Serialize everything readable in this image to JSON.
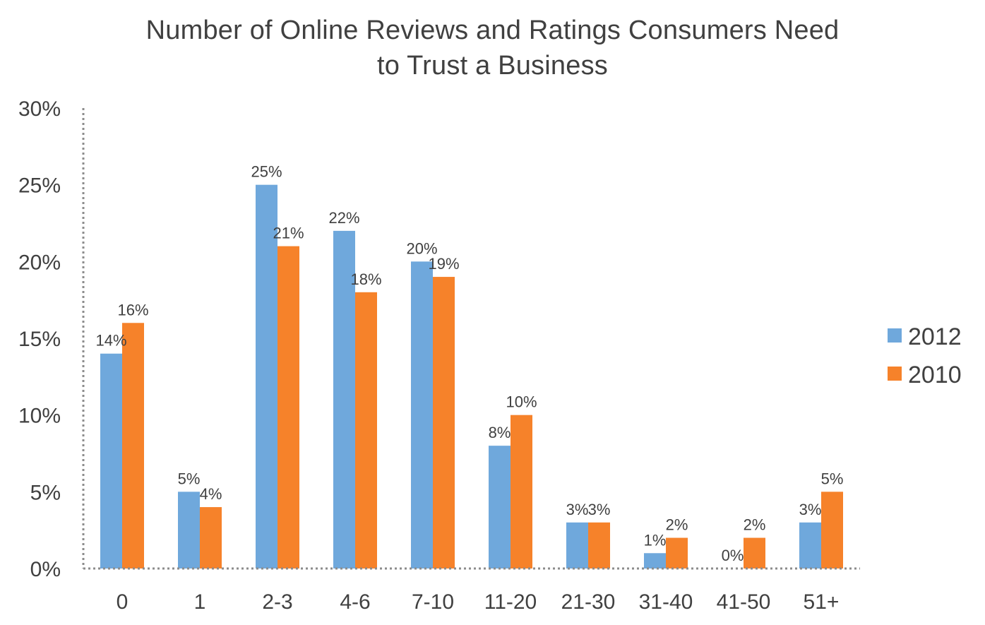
{
  "chart_data": {
    "type": "bar",
    "title": [
      "Number of Online Reviews and Ratings Consumers Need",
      "to Trust a Business"
    ],
    "categories": [
      "0",
      "1",
      "2-3",
      "4-6",
      "7-10",
      "11-20",
      "21-30",
      "31-40",
      "41-50",
      "51+"
    ],
    "series": [
      {
        "name": "2012",
        "color": "#6FA8DC",
        "values": [
          14,
          5,
          25,
          22,
          20,
          8,
          3,
          1,
          0,
          3
        ],
        "labels": [
          "14%",
          "5%",
          "25%",
          "22%",
          "20%",
          "8%",
          "3%",
          "1%",
          "0%",
          "3%"
        ]
      },
      {
        "name": "2010",
        "color": "#F6822A",
        "values": [
          16,
          4,
          21,
          18,
          19,
          10,
          3,
          2,
          2,
          5
        ],
        "labels": [
          "16%",
          "4%",
          "21%",
          "18%",
          "19%",
          "10%",
          "3%",
          "2%",
          "2%",
          "5%"
        ]
      }
    ],
    "ylim": [
      0,
      30
    ],
    "yticks": [
      0,
      5,
      10,
      15,
      20,
      25,
      30
    ],
    "ytick_labels": [
      "0%",
      "5%",
      "10%",
      "15%",
      "20%",
      "25%",
      "30%"
    ],
    "xlabel": "",
    "ylabel": "",
    "grid": false,
    "legend_position": "right"
  }
}
